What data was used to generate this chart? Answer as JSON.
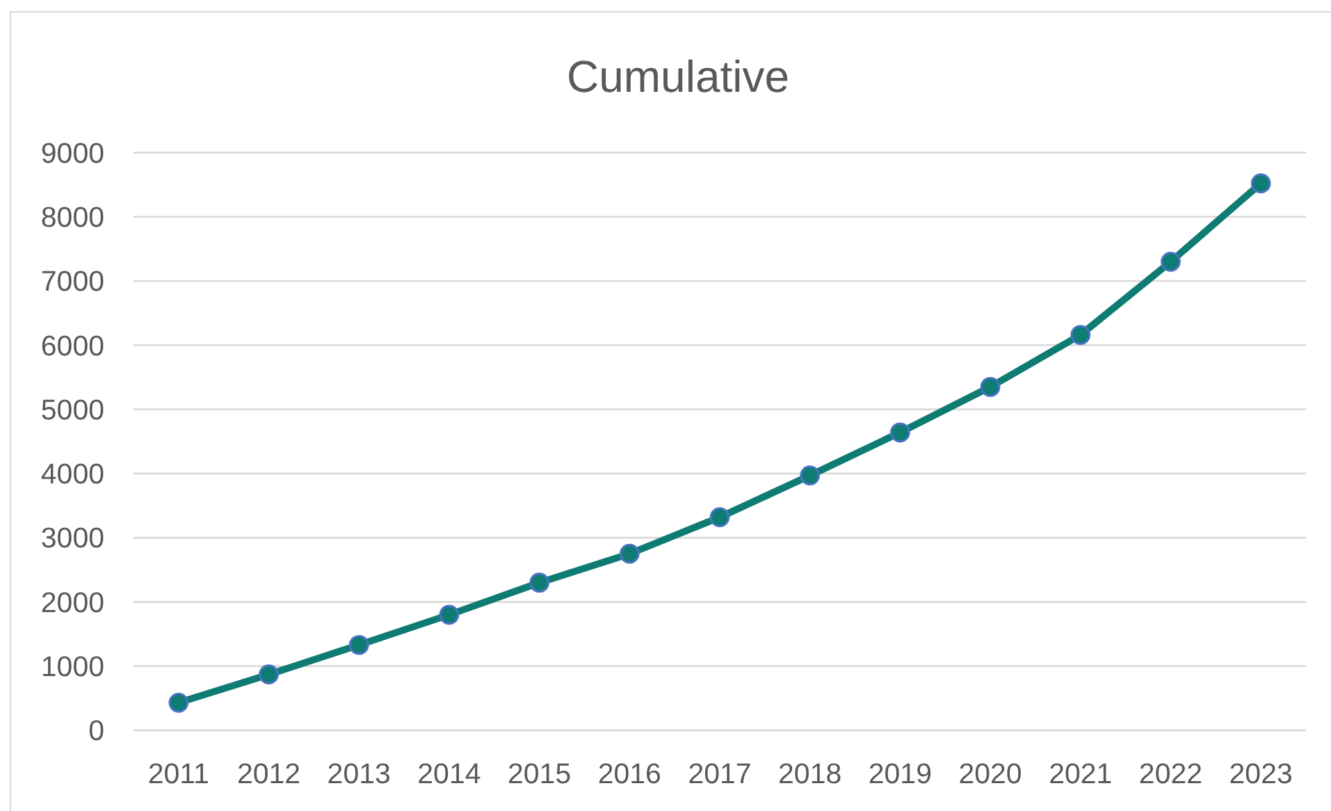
{
  "chart_data": {
    "type": "line",
    "title": "Cumulative",
    "categories": [
      "2011",
      "2012",
      "2013",
      "2014",
      "2015",
      "2016",
      "2017",
      "2018",
      "2019",
      "2020",
      "2021",
      "2022",
      "2023"
    ],
    "series": [
      {
        "color": "#0e7c73",
        "values": [
          430,
          870,
          1330,
          1800,
          2300,
          2750,
          3320,
          3970,
          4640,
          5350,
          6160,
          7300,
          8520
        ]
      }
    ],
    "ylim": [
      0,
      9000
    ],
    "yticks": [
      0,
      1000,
      2000,
      3000,
      4000,
      5000,
      6000,
      7000,
      8000,
      9000
    ],
    "grid": "y",
    "marker": "circle",
    "line_style": "solid"
  }
}
